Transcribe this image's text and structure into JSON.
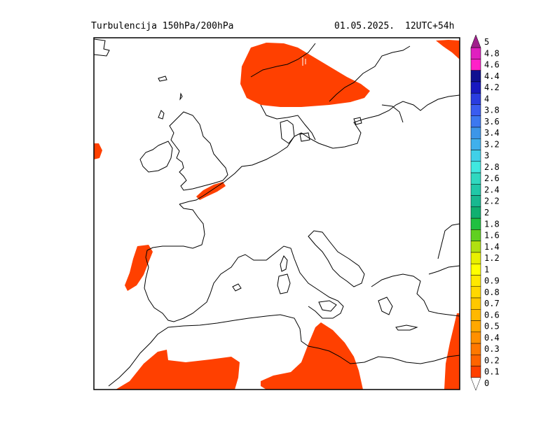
{
  "header": {
    "title": "Turbulencija 150hPa/200hPa",
    "date": "01.05.2025.",
    "run": "12UTC+54h"
  },
  "legend": {
    "levels": [
      {
        "label": "5",
        "color": "#a0208c"
      },
      {
        "label": "4.8",
        "color": "#e020c0"
      },
      {
        "label": "4.6",
        "color": "#ff20c8"
      },
      {
        "label": "4.4",
        "color": "#101090"
      },
      {
        "label": "4.2",
        "color": "#1818c0"
      },
      {
        "label": "4",
        "color": "#2a3ce0"
      },
      {
        "label": "3.8",
        "color": "#3a5cf0"
      },
      {
        "label": "3.6",
        "color": "#3c78f0"
      },
      {
        "label": "3.4",
        "color": "#3c96e8"
      },
      {
        "label": "3.2",
        "color": "#40b0ec"
      },
      {
        "label": "3",
        "color": "#40d0e8"
      },
      {
        "label": "2.8",
        "color": "#40e8e0"
      },
      {
        "label": "2.6",
        "color": "#30d8c0"
      },
      {
        "label": "2.4",
        "color": "#20c8a8"
      },
      {
        "label": "2.2",
        "color": "#18b890"
      },
      {
        "label": "2",
        "color": "#10b070"
      },
      {
        "label": "1.8",
        "color": "#20c040"
      },
      {
        "label": "1.6",
        "color": "#60d020"
      },
      {
        "label": "1.4",
        "color": "#b0e010"
      },
      {
        "label": "1.2",
        "color": "#e8f000"
      },
      {
        "label": "1",
        "color": "#ffff00"
      },
      {
        "label": "0.9",
        "color": "#ffe800"
      },
      {
        "label": "0.8",
        "color": "#ffd800"
      },
      {
        "label": "0.7",
        "color": "#ffc800"
      },
      {
        "label": "0.6",
        "color": "#ffb800"
      },
      {
        "label": "0.5",
        "color": "#ffa800"
      },
      {
        "label": "0.4",
        "color": "#ff9000"
      },
      {
        "label": "0.3",
        "color": "#ff7800"
      },
      {
        "label": "0.2",
        "color": "#ff6400"
      },
      {
        "label": "0.1",
        "color": "#ff4000"
      },
      {
        "label": "0",
        "color": "#ffffff"
      }
    ]
  },
  "field_color": "#ff4000",
  "coast_color": "#000000"
}
